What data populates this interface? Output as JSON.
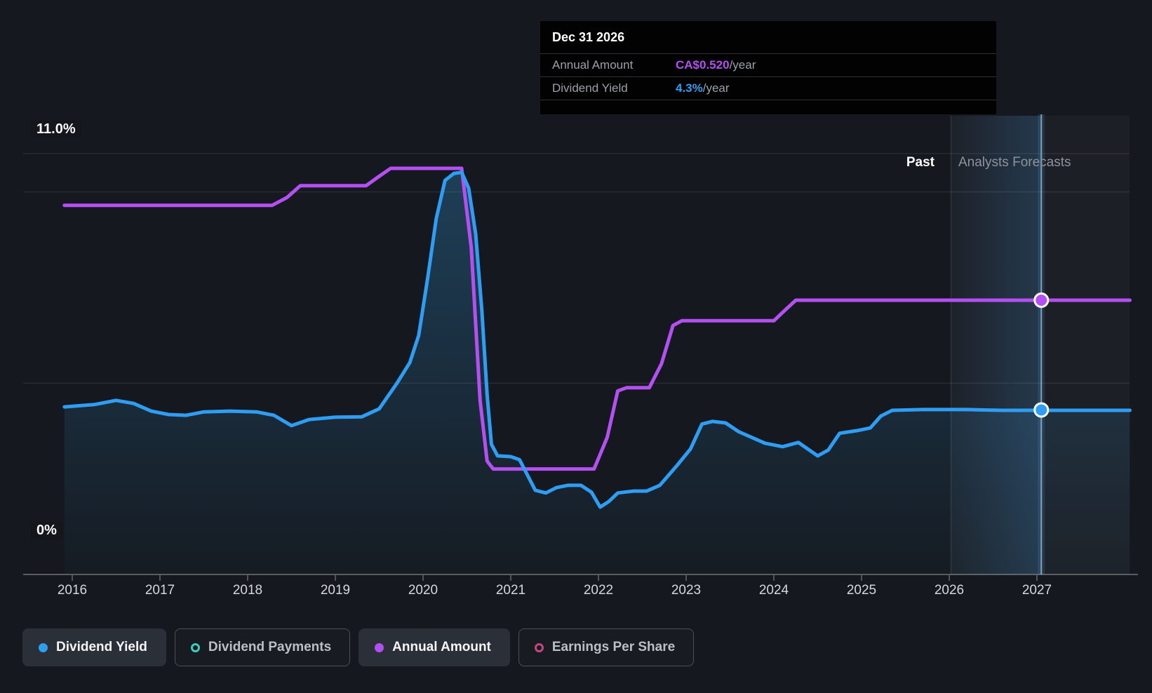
{
  "y_axis": {
    "top_label": "11.0%",
    "bottom_label": "0%"
  },
  "x_axis": {
    "years": [
      "2016",
      "2017",
      "2018",
      "2019",
      "2020",
      "2021",
      "2022",
      "2023",
      "2024",
      "2025",
      "2026",
      "2027"
    ]
  },
  "annotations": {
    "past_label": "Past",
    "forecast_label": "Analysts Forecasts"
  },
  "tooltip": {
    "date": "Dec 31 2026",
    "rows": [
      {
        "label": "Annual Amount",
        "value": "CA$0.520",
        "suffix": "/year",
        "color": "#b44ff2"
      },
      {
        "label": "Dividend Yield",
        "value": "4.3%",
        "suffix": "/year",
        "color": "#2e9df2"
      }
    ]
  },
  "legend": {
    "items": [
      {
        "label": "Dividend Yield",
        "color": "#2b9ff0",
        "style": "filled",
        "active": true
      },
      {
        "label": "Dividend Payments",
        "color": "#3eccbb",
        "style": "ring",
        "active": false
      },
      {
        "label": "Annual Amount",
        "color": "#b050f0",
        "style": "filled",
        "active": true
      },
      {
        "label": "Earnings Per Share",
        "color": "#c2487b",
        "style": "ring",
        "active": false
      }
    ]
  },
  "chart_data": {
    "type": "line",
    "title": "Dividend history and forecast",
    "x_range": [
      2015.91,
      2028.06
    ],
    "yield_axis": {
      "min": 0,
      "max": 11,
      "unit": "%",
      "gridline_values": [
        11,
        10,
        5,
        0
      ]
    },
    "regions": {
      "past_until": 2026.02,
      "forecast_until": 2028.06
    },
    "marker": {
      "date": "Dec 31 2026",
      "x": 2027.05,
      "dividend_yield_pct": 4.3,
      "annual_amount": 0.52
    },
    "series": [
      {
        "name": "Dividend Yield",
        "color": "#2e9df2",
        "unit": "%",
        "scale": "percent",
        "area": true,
        "points": [
          [
            2015.91,
            4.38
          ],
          [
            2016.25,
            4.44
          ],
          [
            2016.5,
            4.55
          ],
          [
            2016.7,
            4.47
          ],
          [
            2016.9,
            4.27
          ],
          [
            2017.1,
            4.18
          ],
          [
            2017.3,
            4.16
          ],
          [
            2017.5,
            4.25
          ],
          [
            2017.8,
            4.27
          ],
          [
            2018.1,
            4.25
          ],
          [
            2018.3,
            4.16
          ],
          [
            2018.5,
            3.89
          ],
          [
            2018.7,
            4.05
          ],
          [
            2019.0,
            4.11
          ],
          [
            2019.3,
            4.12
          ],
          [
            2019.5,
            4.33
          ],
          [
            2019.7,
            4.99
          ],
          [
            2019.85,
            5.54
          ],
          [
            2019.95,
            6.25
          ],
          [
            2020.05,
            7.7
          ],
          [
            2020.15,
            9.3
          ],
          [
            2020.25,
            10.3
          ],
          [
            2020.35,
            10.48
          ],
          [
            2020.44,
            10.51
          ],
          [
            2020.52,
            10.1
          ],
          [
            2020.6,
            8.9
          ],
          [
            2020.67,
            6.9
          ],
          [
            2020.73,
            4.7
          ],
          [
            2020.78,
            3.4
          ],
          [
            2020.85,
            3.1
          ],
          [
            2021.0,
            3.08
          ],
          [
            2021.1,
            3.0
          ],
          [
            2021.28,
            2.2
          ],
          [
            2021.4,
            2.13
          ],
          [
            2021.52,
            2.27
          ],
          [
            2021.65,
            2.33
          ],
          [
            2021.8,
            2.33
          ],
          [
            2021.92,
            2.15
          ],
          [
            2022.02,
            1.76
          ],
          [
            2022.12,
            1.91
          ],
          [
            2022.22,
            2.13
          ],
          [
            2022.4,
            2.18
          ],
          [
            2022.55,
            2.18
          ],
          [
            2022.7,
            2.33
          ],
          [
            2022.9,
            2.86
          ],
          [
            2023.05,
            3.28
          ],
          [
            2023.18,
            3.93
          ],
          [
            2023.3,
            4.0
          ],
          [
            2023.45,
            3.96
          ],
          [
            2023.6,
            3.73
          ],
          [
            2023.9,
            3.43
          ],
          [
            2024.1,
            3.34
          ],
          [
            2024.28,
            3.45
          ],
          [
            2024.5,
            3.1
          ],
          [
            2024.62,
            3.25
          ],
          [
            2024.75,
            3.69
          ],
          [
            2024.95,
            3.76
          ],
          [
            2025.1,
            3.83
          ],
          [
            2025.22,
            4.14
          ],
          [
            2025.35,
            4.29
          ],
          [
            2025.7,
            4.31
          ],
          [
            2026.2,
            4.31
          ],
          [
            2026.6,
            4.29
          ],
          [
            2027.05,
            4.29
          ],
          [
            2028.06,
            4.29
          ]
        ]
      },
      {
        "name": "Annual Amount",
        "color": "#b44ff2",
        "unit": "CA$/year",
        "scale": "currency",
        "points": [
          [
            2015.91,
            0.7
          ],
          [
            2018.28,
            0.7
          ],
          [
            2018.45,
            0.715
          ],
          [
            2018.6,
            0.737
          ],
          [
            2019.35,
            0.737
          ],
          [
            2019.5,
            0.755
          ],
          [
            2019.63,
            0.77
          ],
          [
            2020.44,
            0.77
          ],
          [
            2020.55,
            0.62
          ],
          [
            2020.65,
            0.33
          ],
          [
            2020.73,
            0.215
          ],
          [
            2020.8,
            0.2
          ],
          [
            2021.95,
            0.2
          ],
          [
            2022.1,
            0.26
          ],
          [
            2022.22,
            0.348
          ],
          [
            2022.32,
            0.354
          ],
          [
            2022.58,
            0.354
          ],
          [
            2022.72,
            0.4
          ],
          [
            2022.85,
            0.472
          ],
          [
            2022.95,
            0.481
          ],
          [
            2024.0,
            0.481
          ],
          [
            2024.12,
            0.5
          ],
          [
            2024.25,
            0.52
          ],
          [
            2028.06,
            0.52
          ]
        ]
      }
    ]
  }
}
